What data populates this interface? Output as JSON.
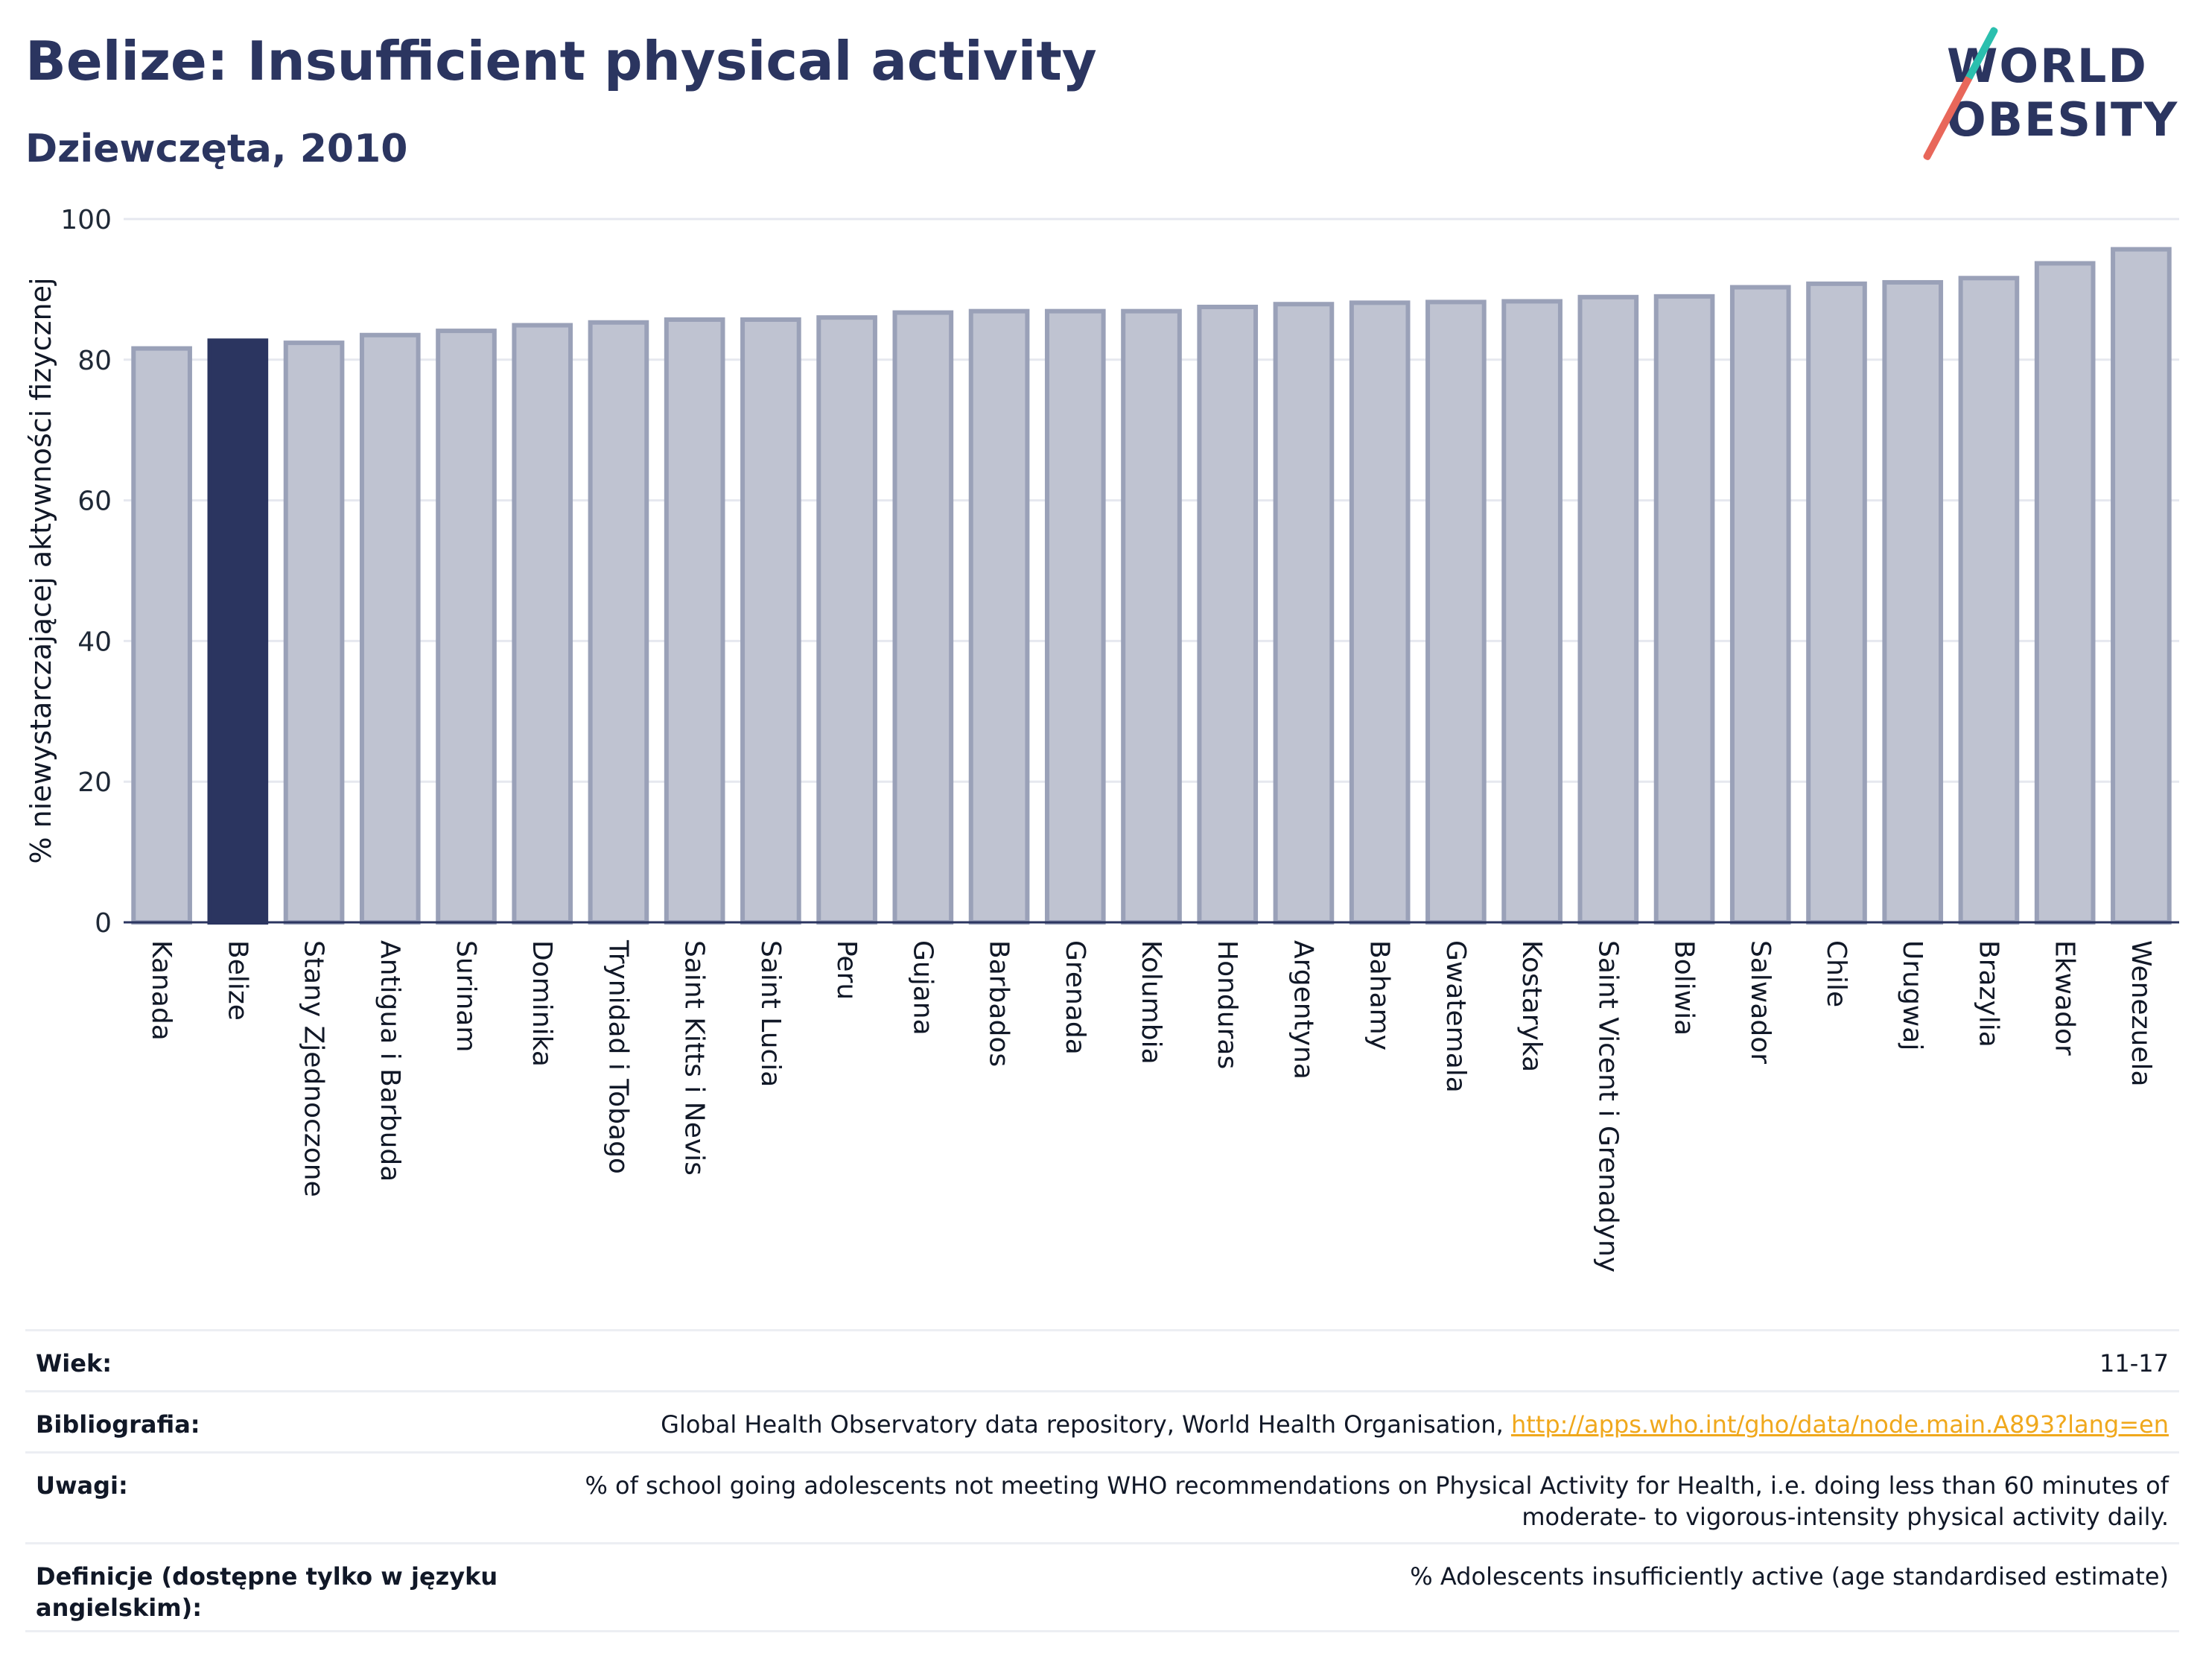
{
  "header": {
    "title": "Belize: Insufficient physical activity",
    "subtitle": "Dziewczęta, 2010"
  },
  "logo": {
    "line1": "WORLD",
    "line2": "OBESITY",
    "accent_colors": [
      "#2bbfae",
      "#e8675a"
    ]
  },
  "colors": {
    "highlight": "#2b3560",
    "bar_fill": "#bfc3d1",
    "bar_stroke": "#9aa1b8",
    "axis_text": "#1f2937"
  },
  "chart_data": {
    "type": "bar",
    "title": "Belize: Insufficient physical activity",
    "subtitle": "Dziewczęta, 2010",
    "ylabel": "% niewystarczającej aktywności fizycznej",
    "xlabel": "",
    "ylim": [
      0,
      100
    ],
    "yticks": [
      0,
      20,
      40,
      60,
      80,
      100
    ],
    "grid": true,
    "highlight": "Belize",
    "categories": [
      "Kanada",
      "Belize",
      "Stany Zjednoczone",
      "Antigua i Barbuda",
      "Surinam",
      "Dominika",
      "Trynidad i Tobago",
      "Saint Kitts i Nevis",
      "Saint Lucia",
      "Peru",
      "Gujana",
      "Barbados",
      "Grenada",
      "Kolumbia",
      "Honduras",
      "Argentyna",
      "Bahamy",
      "Gwatemala",
      "Kostaryka",
      "Saint Vicent i Grenadyny",
      "Boliwia",
      "Salwador",
      "Chile",
      "Urugwaj",
      "Brazylia",
      "Ekwador",
      "Wenezuela"
    ],
    "values": [
      81.6,
      82.7,
      82.4,
      83.5,
      84.1,
      84.9,
      85.3,
      85.7,
      85.7,
      86.0,
      86.7,
      86.9,
      86.9,
      86.9,
      87.5,
      87.9,
      88.1,
      88.2,
      88.3,
      88.9,
      89.0,
      90.3,
      90.8,
      91.0,
      91.6,
      93.7,
      95.7
    ]
  },
  "meta": {
    "age": {
      "label": "Wiek:",
      "value": "11-17"
    },
    "bibliography": {
      "label": "Bibliografia:",
      "value": "Global Health Observatory data repository, World Health Organisation, ",
      "link": "http://apps.who.int/gho/data/node.main.A893?lang=en"
    },
    "notes": {
      "label": "Uwagi:",
      "value_line1": "% of school going adolescents not meeting WHO recommendations on Physical Activity for Health, i.e. doing less than 60 minutes of",
      "value_line2": "moderate- to vigorous-intensity physical activity daily."
    },
    "definitions": {
      "label_line1": "Definicje (dostępne tylko w języku",
      "label_line2": "angielskim):",
      "value": "% Adolescents insufficiently active (age standardised estimate)"
    }
  }
}
